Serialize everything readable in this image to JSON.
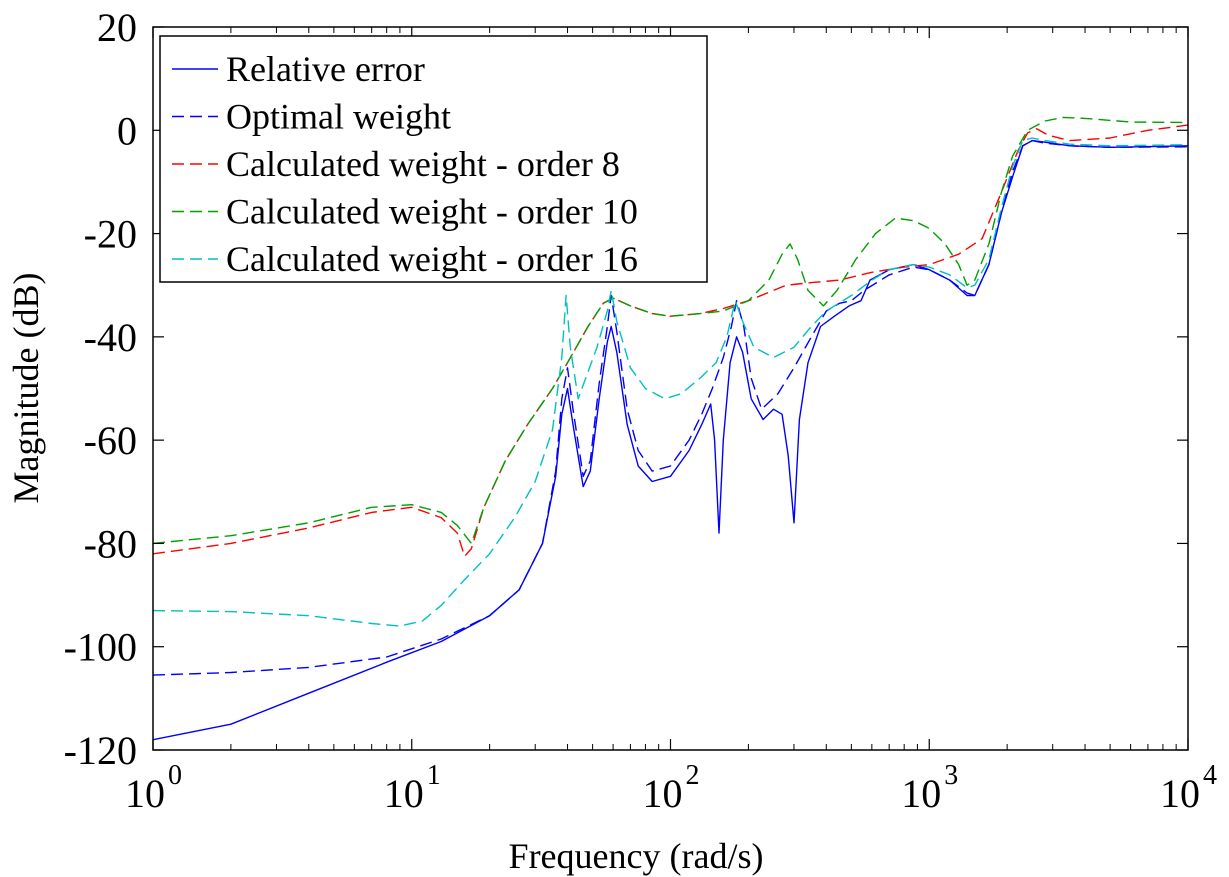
{
  "chart_data": {
    "type": "line",
    "title": "",
    "xlabel": "Frequency  (rad/s)",
    "ylabel": "Magnitude (dB)",
    "xscale": "log",
    "xlim": [
      1,
      10000
    ],
    "ylim": [
      -120,
      20
    ],
    "x_ticks": [
      {
        "base": "10",
        "exp": "0",
        "value": 1
      },
      {
        "base": "10",
        "exp": "1",
        "value": 10
      },
      {
        "base": "10",
        "exp": "2",
        "value": 100
      },
      {
        "base": "10",
        "exp": "3",
        "value": 1000
      },
      {
        "base": "10",
        "exp": "4",
        "value": 10000
      }
    ],
    "y_ticks": [
      "20",
      "0",
      "-20",
      "-40",
      "-60",
      "-80",
      "-100",
      "-120"
    ],
    "grid": false,
    "legend_position": "top-left",
    "series": [
      {
        "name": "Relative error",
        "color": "#0000ff",
        "dash": "solid",
        "points": [
          [
            1,
            -118
          ],
          [
            2,
            -115
          ],
          [
            4,
            -109
          ],
          [
            8,
            -103
          ],
          [
            13,
            -99
          ],
          [
            20,
            -94
          ],
          [
            26,
            -89
          ],
          [
            32,
            -80
          ],
          [
            36,
            -67
          ],
          [
            38,
            -55
          ],
          [
            40,
            -50
          ],
          [
            42,
            -57
          ],
          [
            46,
            -69
          ],
          [
            49,
            -66
          ],
          [
            53,
            -52
          ],
          [
            57,
            -41
          ],
          [
            59,
            -38
          ],
          [
            62,
            -43
          ],
          [
            68,
            -57
          ],
          [
            75,
            -65
          ],
          [
            85,
            -68
          ],
          [
            100,
            -67
          ],
          [
            118,
            -62
          ],
          [
            132,
            -57
          ],
          [
            143,
            -53
          ],
          [
            148,
            -60
          ],
          [
            154,
            -78
          ],
          [
            160,
            -60
          ],
          [
            170,
            -45
          ],
          [
            180,
            -40
          ],
          [
            190,
            -43
          ],
          [
            205,
            -52
          ],
          [
            228,
            -56
          ],
          [
            250,
            -54
          ],
          [
            270,
            -55
          ],
          [
            285,
            -63
          ],
          [
            300,
            -76
          ],
          [
            315,
            -56
          ],
          [
            340,
            -45
          ],
          [
            380,
            -38
          ],
          [
            430,
            -36
          ],
          [
            490,
            -34
          ],
          [
            545,
            -33
          ],
          [
            590,
            -29
          ],
          [
            700,
            -27
          ],
          [
            870,
            -26
          ],
          [
            1000,
            -27
          ],
          [
            1200,
            -29
          ],
          [
            1400,
            -32
          ],
          [
            1500,
            -32
          ],
          [
            1700,
            -26
          ],
          [
            1900,
            -16
          ],
          [
            2100,
            -9
          ],
          [
            2300,
            -3
          ],
          [
            2500,
            -2
          ],
          [
            2800,
            -2.3
          ],
          [
            3500,
            -3
          ],
          [
            5000,
            -3.3
          ],
          [
            10000,
            -3
          ]
        ]
      },
      {
        "name": "Optimal weight",
        "color": "#0000ff",
        "dash": "dashed",
        "points": [
          [
            1,
            -105.5
          ],
          [
            2,
            -105
          ],
          [
            4,
            -104
          ],
          [
            8,
            -102
          ],
          [
            13,
            -98.5
          ],
          [
            20,
            -94
          ],
          [
            26,
            -89
          ],
          [
            32,
            -80
          ],
          [
            36,
            -66
          ],
          [
            38,
            -52
          ],
          [
            40,
            -46
          ],
          [
            42,
            -54
          ],
          [
            46,
            -67
          ],
          [
            49,
            -64
          ],
          [
            53,
            -49
          ],
          [
            57,
            -38
          ],
          [
            59,
            -32
          ],
          [
            62,
            -39
          ],
          [
            68,
            -54
          ],
          [
            75,
            -62
          ],
          [
            85,
            -66
          ],
          [
            100,
            -65
          ],
          [
            118,
            -60
          ],
          [
            132,
            -55
          ],
          [
            145,
            -50
          ],
          [
            160,
            -44
          ],
          [
            172,
            -38
          ],
          [
            180,
            -33
          ],
          [
            192,
            -38
          ],
          [
            205,
            -48
          ],
          [
            225,
            -54
          ],
          [
            260,
            -51
          ],
          [
            300,
            -46
          ],
          [
            350,
            -40
          ],
          [
            400,
            -35
          ],
          [
            450,
            -33.5
          ],
          [
            500,
            -33
          ],
          [
            560,
            -31
          ],
          [
            700,
            -28
          ],
          [
            870,
            -26.5
          ],
          [
            1000,
            -27
          ],
          [
            1200,
            -29
          ],
          [
            1400,
            -31.5
          ],
          [
            1500,
            -32
          ],
          [
            1700,
            -26
          ],
          [
            1900,
            -16
          ],
          [
            2100,
            -8
          ],
          [
            2300,
            -3
          ],
          [
            2500,
            -2
          ],
          [
            2800,
            -2.5
          ],
          [
            3500,
            -3
          ],
          [
            5000,
            -3.3
          ],
          [
            10000,
            -3.2
          ]
        ]
      },
      {
        "name": "Calculated weight - order 8",
        "color": "#ff0000",
        "dash": "dashed",
        "points": [
          [
            1,
            -82
          ],
          [
            2,
            -80
          ],
          [
            4,
            -77
          ],
          [
            7,
            -74
          ],
          [
            10,
            -73
          ],
          [
            13,
            -75
          ],
          [
            15,
            -78
          ],
          [
            16,
            -82.5
          ],
          [
            17,
            -81
          ],
          [
            19,
            -73
          ],
          [
            23,
            -64
          ],
          [
            28,
            -57
          ],
          [
            35,
            -50
          ],
          [
            40,
            -45
          ],
          [
            48,
            -38
          ],
          [
            55,
            -33.5
          ],
          [
            60,
            -32.5
          ],
          [
            70,
            -34
          ],
          [
            85,
            -35.5
          ],
          [
            100,
            -36
          ],
          [
            130,
            -35.5
          ],
          [
            160,
            -34.5
          ],
          [
            200,
            -33
          ],
          [
            280,
            -30
          ],
          [
            350,
            -29.5
          ],
          [
            450,
            -29
          ],
          [
            600,
            -27.5
          ],
          [
            800,
            -26.5
          ],
          [
            1000,
            -26
          ],
          [
            1300,
            -24
          ],
          [
            1600,
            -21
          ],
          [
            1900,
            -12
          ],
          [
            2200,
            -4
          ],
          [
            2400,
            -0.5
          ],
          [
            2600,
            0.3
          ],
          [
            2900,
            -1
          ],
          [
            3500,
            -2
          ],
          [
            5000,
            -1.5
          ],
          [
            7000,
            0
          ],
          [
            10000,
            1
          ]
        ]
      },
      {
        "name": "Calculated weight - order 10",
        "color": "#00a000",
        "dash": "dashed",
        "points": [
          [
            1,
            -80
          ],
          [
            2,
            -78.5
          ],
          [
            4,
            -76
          ],
          [
            7,
            -73
          ],
          [
            10,
            -72.5
          ],
          [
            13,
            -74
          ],
          [
            15,
            -76.5
          ],
          [
            17,
            -80
          ],
          [
            19,
            -73
          ],
          [
            23,
            -64
          ],
          [
            28,
            -57
          ],
          [
            35,
            -50
          ],
          [
            40,
            -45
          ],
          [
            48,
            -38
          ],
          [
            55,
            -33.5
          ],
          [
            60,
            -32.5
          ],
          [
            70,
            -34
          ],
          [
            85,
            -35.5
          ],
          [
            100,
            -36
          ],
          [
            130,
            -35.5
          ],
          [
            160,
            -35
          ],
          [
            200,
            -33
          ],
          [
            240,
            -29
          ],
          [
            270,
            -24
          ],
          [
            290,
            -22
          ],
          [
            310,
            -25
          ],
          [
            340,
            -31
          ],
          [
            390,
            -34
          ],
          [
            440,
            -31
          ],
          [
            520,
            -25
          ],
          [
            620,
            -20
          ],
          [
            740,
            -17
          ],
          [
            870,
            -17.5
          ],
          [
            1000,
            -19
          ],
          [
            1150,
            -22
          ],
          [
            1300,
            -26
          ],
          [
            1400,
            -30
          ],
          [
            1500,
            -29
          ],
          [
            1700,
            -22
          ],
          [
            1900,
            -12
          ],
          [
            2100,
            -5
          ],
          [
            2400,
            0
          ],
          [
            2800,
            1.8
          ],
          [
            3300,
            2.5
          ],
          [
            4000,
            2.3
          ],
          [
            6000,
            1.6
          ],
          [
            10000,
            1.5
          ]
        ]
      },
      {
        "name": "Calculated weight - order 16",
        "color": "#00c0c0",
        "dash": "dashed",
        "points": [
          [
            1,
            -93
          ],
          [
            2,
            -93.2
          ],
          [
            4,
            -94
          ],
          [
            7,
            -95.5
          ],
          [
            9,
            -96
          ],
          [
            11,
            -95
          ],
          [
            13,
            -92
          ],
          [
            16,
            -87
          ],
          [
            20,
            -82
          ],
          [
            25,
            -75
          ],
          [
            30,
            -68
          ],
          [
            35,
            -58
          ],
          [
            38,
            -44
          ],
          [
            39.5,
            -32
          ],
          [
            41,
            -42
          ],
          [
            44,
            -52
          ],
          [
            47,
            -48
          ],
          [
            52,
            -42
          ],
          [
            57,
            -35
          ],
          [
            59,
            -31
          ],
          [
            62,
            -37
          ],
          [
            70,
            -46
          ],
          [
            80,
            -50
          ],
          [
            95,
            -52
          ],
          [
            110,
            -51
          ],
          [
            130,
            -48
          ],
          [
            150,
            -45
          ],
          [
            165,
            -40
          ],
          [
            178,
            -33
          ],
          [
            190,
            -37
          ],
          [
            210,
            -42
          ],
          [
            250,
            -44
          ],
          [
            300,
            -42
          ],
          [
            350,
            -38
          ],
          [
            400,
            -35
          ],
          [
            500,
            -32
          ],
          [
            600,
            -29
          ],
          [
            700,
            -27
          ],
          [
            870,
            -26
          ],
          [
            1000,
            -26.5
          ],
          [
            1200,
            -28
          ],
          [
            1400,
            -30.5
          ],
          [
            1500,
            -30
          ],
          [
            1700,
            -25
          ],
          [
            1900,
            -15
          ],
          [
            2100,
            -7
          ],
          [
            2300,
            -2
          ],
          [
            2500,
            -1.5
          ],
          [
            2800,
            -2
          ],
          [
            3500,
            -2.7
          ],
          [
            5000,
            -3
          ],
          [
            10000,
            -2.8
          ]
        ]
      }
    ]
  }
}
